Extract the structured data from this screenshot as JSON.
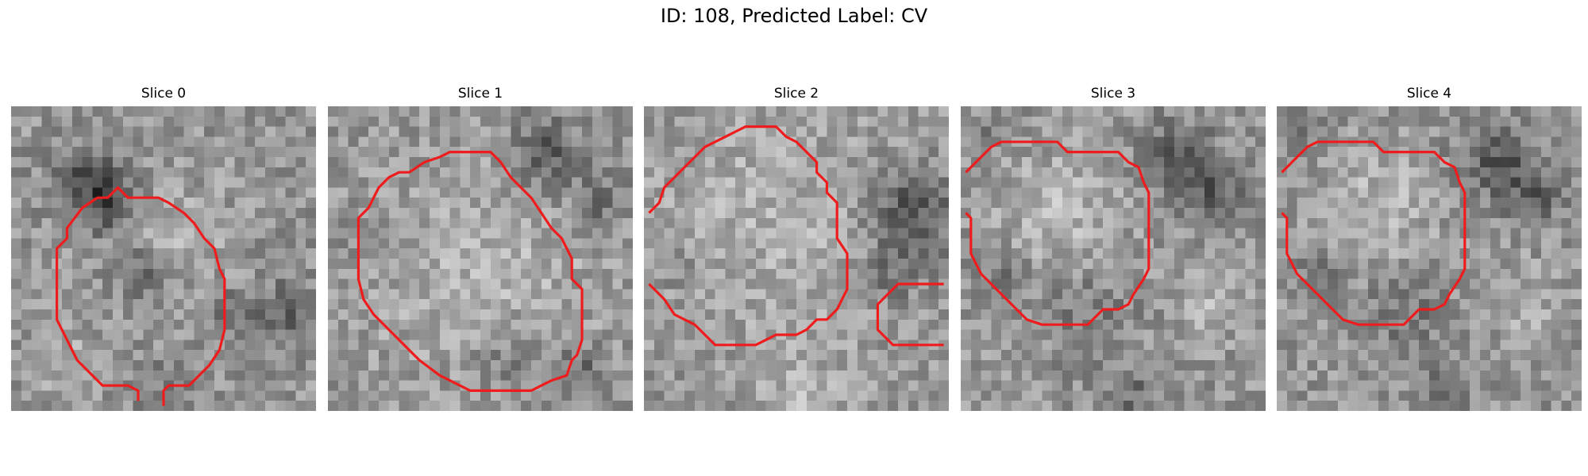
{
  "figure": {
    "title": "ID: 108, Predicted Label: CV"
  },
  "panels": [
    {
      "title": "Slice 0",
      "image": "grayscale-microscopy-patch",
      "contour": "red-contour-outline"
    },
    {
      "title": "Slice 1",
      "image": "grayscale-microscopy-patch",
      "contour": "red-contour-outline"
    },
    {
      "title": "Slice 2",
      "image": "grayscale-microscopy-patch",
      "contour": "red-contour-outline"
    },
    {
      "title": "Slice 3",
      "image": "grayscale-microscopy-patch",
      "contour": "red-contour-outline"
    },
    {
      "title": "Slice 4",
      "image": "grayscale-microscopy-patch",
      "contour": "red-contour-outline"
    }
  ],
  "colors": {
    "contour": "#ee1c1c",
    "background": "#ffffff"
  }
}
